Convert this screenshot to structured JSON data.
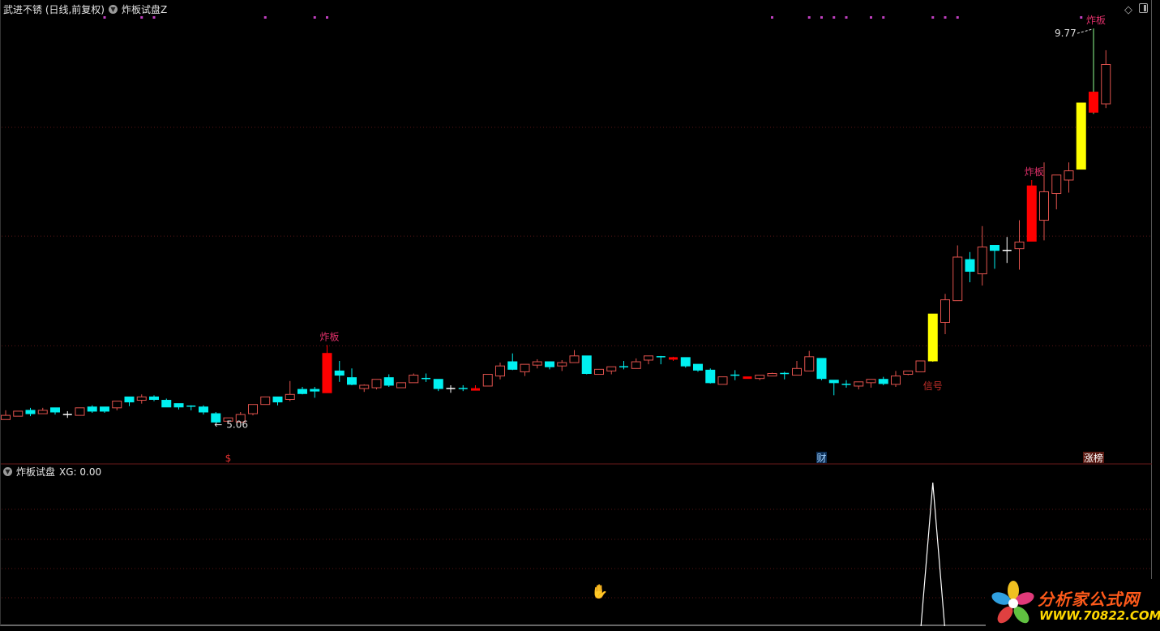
{
  "header": {
    "stock_title": "武进不锈 (日线,前复权)",
    "indicator_name": "炸板试盘Z"
  },
  "sub_pane": {
    "indicator_name": "炸板试盘",
    "readout": "XG: 0.00"
  },
  "toolbar_icons": [
    "diamond-icon",
    "panel-toggle-icon"
  ],
  "watermark": {
    "line1": "分析家公式网",
    "line2": "WWW.70822.COM"
  },
  "colors": {
    "up": "#e0524d",
    "down": "#00f0f0",
    "zhaban": "#ff0000",
    "signal": "#ffff00",
    "top_dot": "#c040c0",
    "label_zhaban": "#e0306a",
    "label_signal": "#c8302a",
    "grid": "#5a1515",
    "separator": "#6a1a1a",
    "xg_line": "#ffffff"
  },
  "chart_data": [
    {
      "type": "candlestick",
      "ylim": [
        4.57,
        10.11
      ],
      "grid": true,
      "grid_values": [
        8.59,
        7.29,
        5.98
      ],
      "candles": [
        [
          5.1,
          5.21,
          5.1,
          5.15,
          "up"
        ],
        [
          5.14,
          5.2,
          5.14,
          5.2,
          "up"
        ],
        [
          5.21,
          5.24,
          5.14,
          5.17,
          "down"
        ],
        [
          5.17,
          5.24,
          5.17,
          5.21,
          "up"
        ],
        [
          5.24,
          5.24,
          5.16,
          5.19,
          "down"
        ],
        [
          5.16,
          5.2,
          5.12,
          5.16,
          "doji-white"
        ],
        [
          5.15,
          5.24,
          5.15,
          5.24,
          "up"
        ],
        [
          5.25,
          5.27,
          5.18,
          5.2,
          "down"
        ],
        [
          5.25,
          5.25,
          5.18,
          5.2,
          "down"
        ],
        [
          5.24,
          5.32,
          5.21,
          5.32,
          "up"
        ],
        [
          5.37,
          5.37,
          5.26,
          5.31,
          "down"
        ],
        [
          5.33,
          5.4,
          5.29,
          5.37,
          "up"
        ],
        [
          5.37,
          5.39,
          5.32,
          5.34,
          "down"
        ],
        [
          5.33,
          5.35,
          5.25,
          5.25,
          "down"
        ],
        [
          5.29,
          5.29,
          5.22,
          5.25,
          "down"
        ],
        [
          5.26,
          5.27,
          5.21,
          5.26,
          "doji-cyan"
        ],
        [
          5.25,
          5.27,
          5.16,
          5.19,
          "down"
        ],
        [
          5.17,
          5.19,
          5.06,
          5.07,
          "down"
        ],
        [
          5.08,
          5.12,
          5.06,
          5.12,
          "up"
        ],
        [
          5.07,
          5.19,
          5.07,
          5.16,
          "up"
        ],
        [
          5.17,
          5.28,
          5.15,
          5.28,
          "up"
        ],
        [
          5.28,
          5.37,
          5.28,
          5.37,
          "up"
        ],
        [
          5.37,
          5.37,
          5.27,
          5.31,
          "down"
        ],
        [
          5.34,
          5.56,
          5.32,
          5.4,
          "up"
        ],
        [
          5.46,
          5.49,
          5.4,
          5.41,
          "down"
        ],
        [
          5.46,
          5.49,
          5.36,
          5.44,
          "down"
        ],
        [
          5.42,
          5.99,
          5.42,
          5.89,
          "zhaban"
        ],
        [
          5.68,
          5.8,
          5.55,
          5.63,
          "down"
        ],
        [
          5.6,
          5.71,
          5.51,
          5.52,
          "down"
        ],
        [
          5.47,
          5.52,
          5.43,
          5.51,
          "up"
        ],
        [
          5.48,
          5.58,
          5.46,
          5.58,
          "up"
        ],
        [
          5.6,
          5.64,
          5.49,
          5.51,
          "down"
        ],
        [
          5.48,
          5.54,
          5.48,
          5.54,
          "up"
        ],
        [
          5.54,
          5.65,
          5.54,
          5.63,
          "up"
        ],
        [
          5.59,
          5.65,
          5.55,
          5.59,
          "doji-cyan"
        ],
        [
          5.58,
          5.58,
          5.44,
          5.47,
          "down"
        ],
        [
          5.47,
          5.51,
          5.42,
          5.47,
          "doji-white"
        ],
        [
          5.47,
          5.51,
          5.44,
          5.47,
          "doji-cyan"
        ],
        [
          5.46,
          5.51,
          5.45,
          5.46,
          "doji-red"
        ],
        [
          5.5,
          5.64,
          5.5,
          5.64,
          "up"
        ],
        [
          5.62,
          5.78,
          5.58,
          5.74,
          "up"
        ],
        [
          5.79,
          5.89,
          5.69,
          5.7,
          "down"
        ],
        [
          5.67,
          5.76,
          5.62,
          5.76,
          "up"
        ],
        [
          5.75,
          5.82,
          5.71,
          5.79,
          "up"
        ],
        [
          5.79,
          5.79,
          5.7,
          5.73,
          "down"
        ],
        [
          5.74,
          5.81,
          5.68,
          5.78,
          "up"
        ],
        [
          5.78,
          5.93,
          5.78,
          5.86,
          "up"
        ],
        [
          5.86,
          5.86,
          5.64,
          5.65,
          "down"
        ],
        [
          5.64,
          5.7,
          5.64,
          5.7,
          "up"
        ],
        [
          5.68,
          5.73,
          5.64,
          5.73,
          "up"
        ],
        [
          5.73,
          5.8,
          5.7,
          5.73,
          "doji-cyan"
        ],
        [
          5.71,
          5.83,
          5.71,
          5.79,
          "up"
        ],
        [
          5.81,
          5.86,
          5.76,
          5.86,
          "up"
        ],
        [
          5.85,
          5.86,
          5.76,
          5.85,
          "doji-cyan"
        ],
        [
          5.83,
          5.85,
          5.8,
          5.83,
          "doji-red"
        ],
        [
          5.84,
          5.84,
          5.72,
          5.74,
          "down"
        ],
        [
          5.76,
          5.76,
          5.67,
          5.69,
          "down"
        ],
        [
          5.69,
          5.71,
          5.53,
          5.54,
          "down"
        ],
        [
          5.52,
          5.61,
          5.52,
          5.61,
          "up"
        ],
        [
          5.63,
          5.69,
          5.57,
          5.63,
          "doji-cyan"
        ],
        [
          5.6,
          5.61,
          5.59,
          5.6,
          "doji-red"
        ],
        [
          5.59,
          5.63,
          5.57,
          5.63,
          "up"
        ],
        [
          5.62,
          5.66,
          5.62,
          5.65,
          "up"
        ],
        [
          5.65,
          5.67,
          5.58,
          5.65,
          "doji-cyan"
        ],
        [
          5.63,
          5.8,
          5.63,
          5.71,
          "up"
        ],
        [
          5.68,
          5.92,
          5.68,
          5.85,
          "up"
        ],
        [
          5.83,
          5.83,
          5.57,
          5.59,
          "down"
        ],
        [
          5.57,
          5.57,
          5.39,
          5.54,
          "down"
        ],
        [
          5.52,
          5.57,
          5.48,
          5.52,
          "doji-cyan"
        ],
        [
          5.5,
          5.55,
          5.46,
          5.55,
          "up"
        ],
        [
          5.54,
          5.58,
          5.48,
          5.58,
          "up"
        ],
        [
          5.58,
          5.61,
          5.51,
          5.53,
          "down"
        ],
        [
          5.52,
          5.68,
          5.49,
          5.62,
          "up"
        ],
        [
          5.64,
          5.68,
          5.63,
          5.68,
          "up"
        ],
        [
          5.67,
          5.8,
          5.67,
          5.8,
          "up"
        ],
        [
          5.8,
          6.36,
          5.79,
          6.36,
          "signal"
        ],
        [
          6.26,
          6.6,
          6.12,
          6.53,
          "up"
        ],
        [
          6.52,
          7.18,
          6.52,
          7.04,
          "up"
        ],
        [
          7.01,
          7.1,
          6.74,
          6.87,
          "down"
        ],
        [
          6.84,
          7.41,
          6.7,
          7.16,
          "up"
        ],
        [
          7.18,
          7.18,
          6.9,
          7.12,
          "down"
        ],
        [
          7.12,
          7.28,
          6.97,
          7.12,
          "doji-white"
        ],
        [
          7.14,
          7.48,
          6.89,
          7.22,
          "up"
        ],
        [
          7.23,
          7.96,
          7.23,
          7.89,
          "zhaban"
        ],
        [
          7.48,
          8.17,
          7.24,
          7.82,
          "up"
        ],
        [
          7.8,
          8.02,
          7.61,
          8.02,
          "up"
        ],
        [
          7.96,
          8.17,
          7.81,
          8.07,
          "up"
        ],
        [
          8.09,
          8.88,
          8.09,
          8.88,
          "signal"
        ],
        [
          8.77,
          9.77,
          8.75,
          9.01,
          "zhaban"
        ],
        [
          8.87,
          9.51,
          8.82,
          9.34,
          "up"
        ]
      ],
      "top_dot_candles": [
        8,
        11,
        12,
        21,
        25,
        26,
        62,
        65,
        66,
        67,
        68,
        70,
        71,
        75,
        76,
        77,
        87
      ],
      "annotations": [
        {
          "candle": 26,
          "text": "炸板",
          "kind": "zhaban"
        },
        {
          "candle": 83,
          "text": "炸板",
          "kind": "zhaban"
        },
        {
          "candle": 88,
          "text": "炸板",
          "kind": "zhaban"
        },
        {
          "candle": 75,
          "text": "信号",
          "kind": "signal"
        }
      ],
      "price_marks": [
        {
          "candle": 17,
          "text": "5.06",
          "arrow": "←",
          "at": "low"
        },
        {
          "candle": 88,
          "text": "9.77",
          "arrow": "→",
          "at": "high"
        }
      ],
      "bottom_markers": [
        {
          "candle": 18,
          "text": "$",
          "color": "#e03030",
          "bg": ""
        },
        {
          "candle": 66,
          "text": "财",
          "color": "#9fd0ff",
          "bg": "#0d2f55"
        },
        {
          "candle": 88,
          "text": "涨榜",
          "color": "#ffffff",
          "bg": "#5a1a12"
        }
      ]
    },
    {
      "type": "line",
      "series": [
        {
          "name": "XG",
          "nonzero": {
            "candle": 75,
            "value": 1
          }
        }
      ],
      "ylim": [
        0,
        1
      ],
      "grid": true
    }
  ]
}
